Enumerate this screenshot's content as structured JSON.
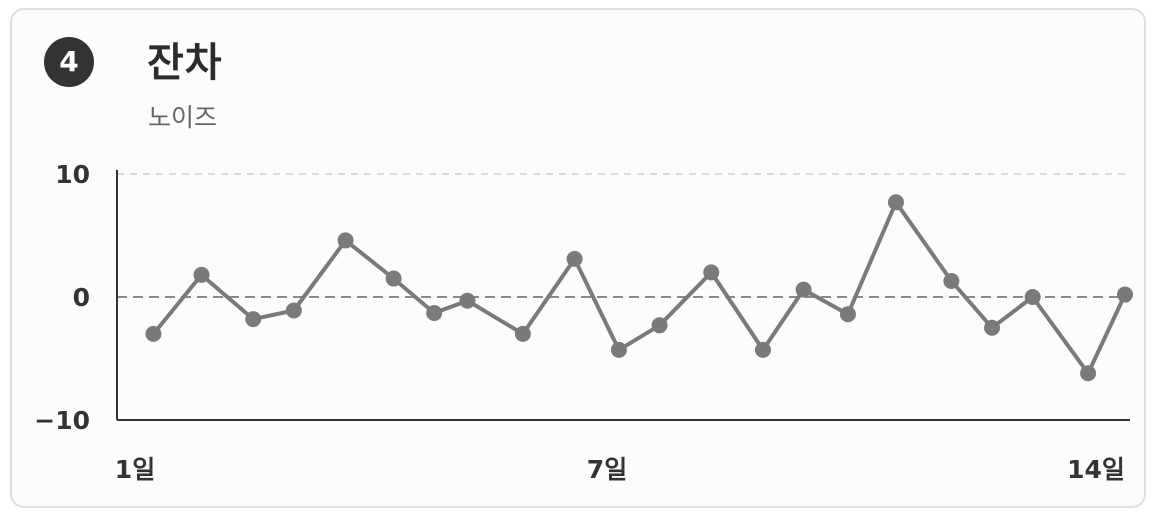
{
  "card": {
    "badge": "4",
    "title": "잔차",
    "subtitle": "노이즈"
  },
  "chart_data": {
    "type": "line",
    "title": "잔차",
    "subtitle": "노이즈",
    "xlabel": "",
    "ylabel": "",
    "ylim": [
      -10,
      10
    ],
    "yticks": [
      10,
      0,
      -10
    ],
    "ytick_labels": [
      "10",
      "0",
      "−10"
    ],
    "xticks": [
      1,
      7,
      14
    ],
    "xtick_labels": [
      "1일",
      "7일",
      "14일"
    ],
    "grid": "dashed horizontal at 10 and 0",
    "line_color": "#7a7a7a",
    "series": [
      {
        "values": [
          {
            "x": 1.25,
            "y": -3
          },
          {
            "x": 1.9,
            "y": 1.8
          },
          {
            "x": 2.6,
            "y": -1.8
          },
          {
            "x": 3.15,
            "y": -1.1
          },
          {
            "x": 3.85,
            "y": 4.6
          },
          {
            "x": 4.5,
            "y": 1.5
          },
          {
            "x": 5.05,
            "y": -1.3
          },
          {
            "x": 5.5,
            "y": -0.3
          },
          {
            "x": 6.25,
            "y": -3
          },
          {
            "x": 6.95,
            "y": 3.1
          },
          {
            "x": 7.55,
            "y": -4.3
          },
          {
            "x": 8.1,
            "y": -2.3
          },
          {
            "x": 8.8,
            "y": 2
          },
          {
            "x": 9.5,
            "y": -4.3
          },
          {
            "x": 10.05,
            "y": 0.6
          },
          {
            "x": 10.65,
            "y": -1.4
          },
          {
            "x": 11.3,
            "y": 7.7
          },
          {
            "x": 12.05,
            "y": 1.3
          },
          {
            "x": 12.6,
            "y": -2.5
          },
          {
            "x": 13.15,
            "y": 0
          },
          {
            "x": 13.9,
            "y": -6.2
          },
          {
            "x": 14.4,
            "y": 0.2
          }
        ]
      }
    ]
  }
}
